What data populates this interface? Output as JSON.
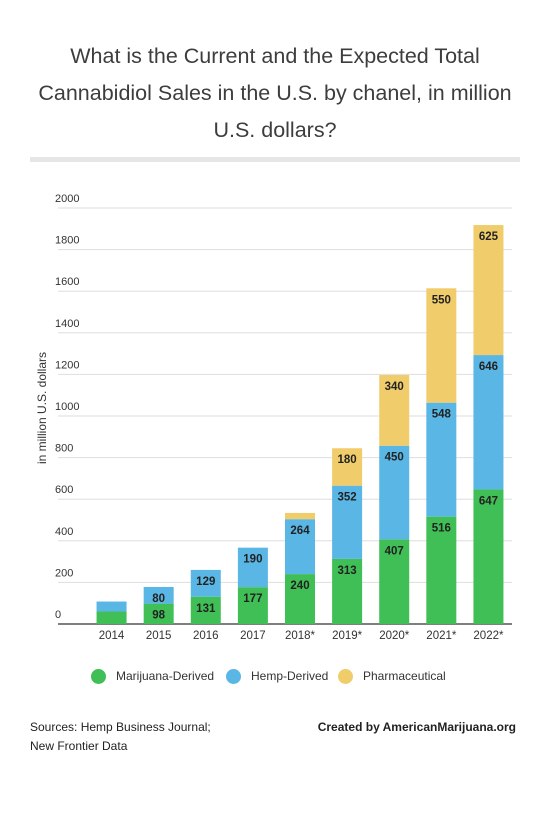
{
  "page": {
    "title": "What is the Current and the Expected Total Cannabidiol Sales in the U.S. by chanel, in million U.S. dollars?",
    "sources_line1": "Sources: Hemp Business Journal;",
    "sources_line2": "New Frontier Data",
    "credit": "Created by AmericanMarijuana.org"
  },
  "chart_data": {
    "type": "bar",
    "stacked": true,
    "title": "What is the Current and the Expected Total Cannabidiol Sales in the U.S. by chanel, in million U.S. dollars?",
    "xlabel": "",
    "ylabel": "in million U.S. dollars",
    "ylim": [
      0,
      2000
    ],
    "yticks": [
      0,
      200,
      400,
      600,
      800,
      1000,
      1200,
      1400,
      1600,
      1800,
      2000
    ],
    "grid": true,
    "legend_position": "bottom",
    "categories": [
      "2014",
      "2015",
      "2016",
      "2017",
      "2018*",
      "2019*",
      "2020*",
      "2021*",
      "2022*"
    ],
    "series": [
      {
        "name": "Marijuana-Derived",
        "color": "#3fbf55",
        "values": [
          60,
          98,
          131,
          177,
          240,
          313,
          407,
          516,
          647
        ],
        "labels": [
          "",
          "98",
          "131",
          "177",
          "240",
          "313",
          "407",
          "516",
          "647"
        ]
      },
      {
        "name": "Hemp-Derived",
        "color": "#5ab6e4",
        "values": [
          48,
          80,
          129,
          190,
          264,
          352,
          450,
          548,
          646
        ],
        "labels": [
          "",
          "80",
          "129",
          "190",
          "264",
          "352",
          "450",
          "548",
          "646"
        ]
      },
      {
        "name": "Pharmaceutical",
        "color": "#f0cd6a",
        "values": [
          0,
          0,
          0,
          0,
          30,
          180,
          340,
          550,
          625
        ],
        "labels": [
          "",
          "",
          "",
          "",
          "",
          "180",
          "340",
          "550",
          "625"
        ]
      }
    ]
  }
}
